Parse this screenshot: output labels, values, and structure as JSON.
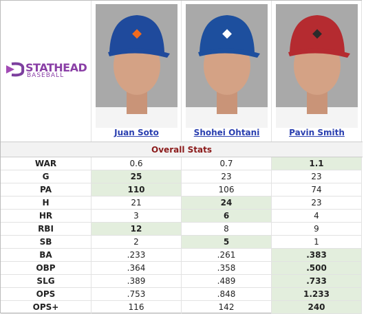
{
  "logo": {
    "brand": "STATHEAD",
    "sub": "BASEBALL"
  },
  "players": [
    "Juan Soto",
    "Shohei Ohtani",
    "Pavin Smith"
  ],
  "section_title": "Overall Stats",
  "table": {
    "rows": [
      {
        "label": "WAR",
        "values": [
          "0.6",
          "0.7",
          "1.1"
        ],
        "highlight": [
          false,
          false,
          true
        ]
      },
      {
        "label": "G",
        "values": [
          "25",
          "23",
          "23"
        ],
        "highlight": [
          true,
          false,
          false
        ]
      },
      {
        "label": "PA",
        "values": [
          "110",
          "106",
          "74"
        ],
        "highlight": [
          true,
          false,
          false
        ]
      },
      {
        "label": "H",
        "values": [
          "21",
          "24",
          "23"
        ],
        "highlight": [
          false,
          true,
          false
        ]
      },
      {
        "label": "HR",
        "values": [
          "3",
          "6",
          "4"
        ],
        "highlight": [
          false,
          true,
          false
        ]
      },
      {
        "label": "RBI",
        "values": [
          "12",
          "8",
          "9"
        ],
        "highlight": [
          true,
          false,
          false
        ]
      },
      {
        "label": "SB",
        "values": [
          "2",
          "5",
          "1"
        ],
        "highlight": [
          false,
          true,
          false
        ]
      },
      {
        "label": "BA",
        "values": [
          ".233",
          ".261",
          ".383"
        ],
        "highlight": [
          false,
          false,
          true
        ]
      },
      {
        "label": "OBP",
        "values": [
          ".364",
          ".358",
          ".500"
        ],
        "highlight": [
          false,
          false,
          true
        ]
      },
      {
        "label": "SLG",
        "values": [
          ".389",
          ".489",
          ".733"
        ],
        "highlight": [
          false,
          false,
          true
        ]
      },
      {
        "label": "OPS",
        "values": [
          ".753",
          ".848",
          "1.233"
        ],
        "highlight": [
          false,
          false,
          true
        ]
      },
      {
        "label": "OPS+",
        "values": [
          "116",
          "142",
          "240"
        ],
        "highlight": [
          false,
          false,
          true
        ]
      }
    ]
  }
}
